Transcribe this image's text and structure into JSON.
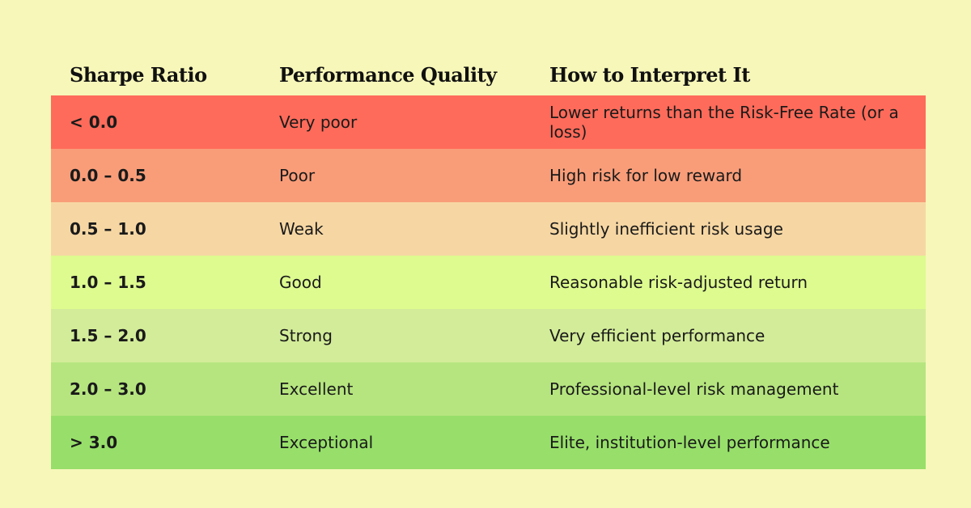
{
  "table": {
    "header": [
      "Sharpe Ratio",
      "Performance Quality",
      "How to Interpret It"
    ],
    "rows": [
      [
        "< 0.0",
        "Very poor",
        "Lower returns than the Risk-Free Rate (or a loss)"
      ],
      [
        "0.0 – 0.5",
        "Poor",
        "High risk for low reward"
      ],
      [
        "0.5 – 1.0",
        "Weak",
        "Slightly inefficient risk usage"
      ],
      [
        "1.0 – 1.5",
        "Good",
        "Reasonable risk-adjusted return"
      ],
      [
        "1.5 – 2.0",
        "Strong",
        "Very efficient performance"
      ],
      [
        "2.0 – 3.0",
        "Excellent",
        "Professional-level risk management"
      ],
      [
        "> 3.0",
        "Exceptional",
        "Elite, institution-level performance"
      ]
    ]
  }
}
